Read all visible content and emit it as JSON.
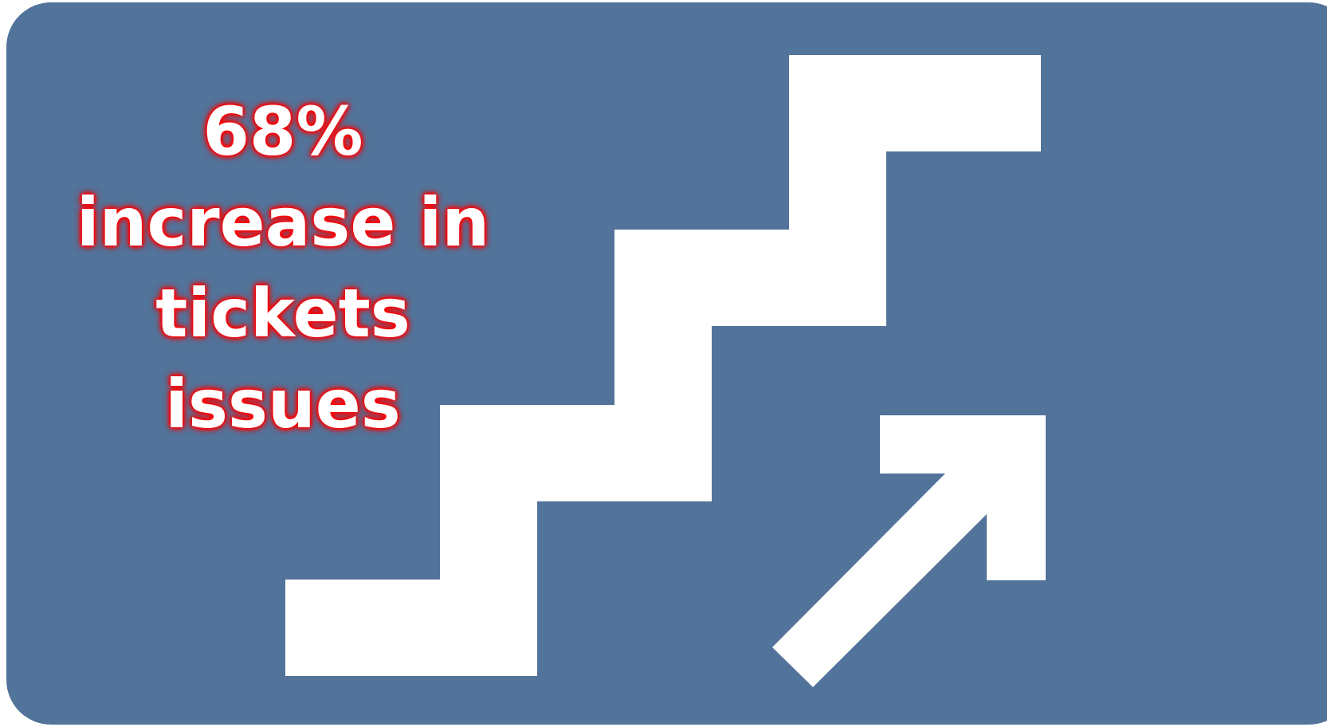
{
  "colors": {
    "card_background": "#52739A",
    "graphic": "#ffffff",
    "text": "#ffffff",
    "text_glow": "#ff0000"
  },
  "icons": {
    "staircase": "staircase-icon",
    "arrow": "arrow-up-right-icon"
  },
  "headline": {
    "line1": "68%",
    "line2": "increase in",
    "line3": "tickets",
    "line4": "issues"
  }
}
